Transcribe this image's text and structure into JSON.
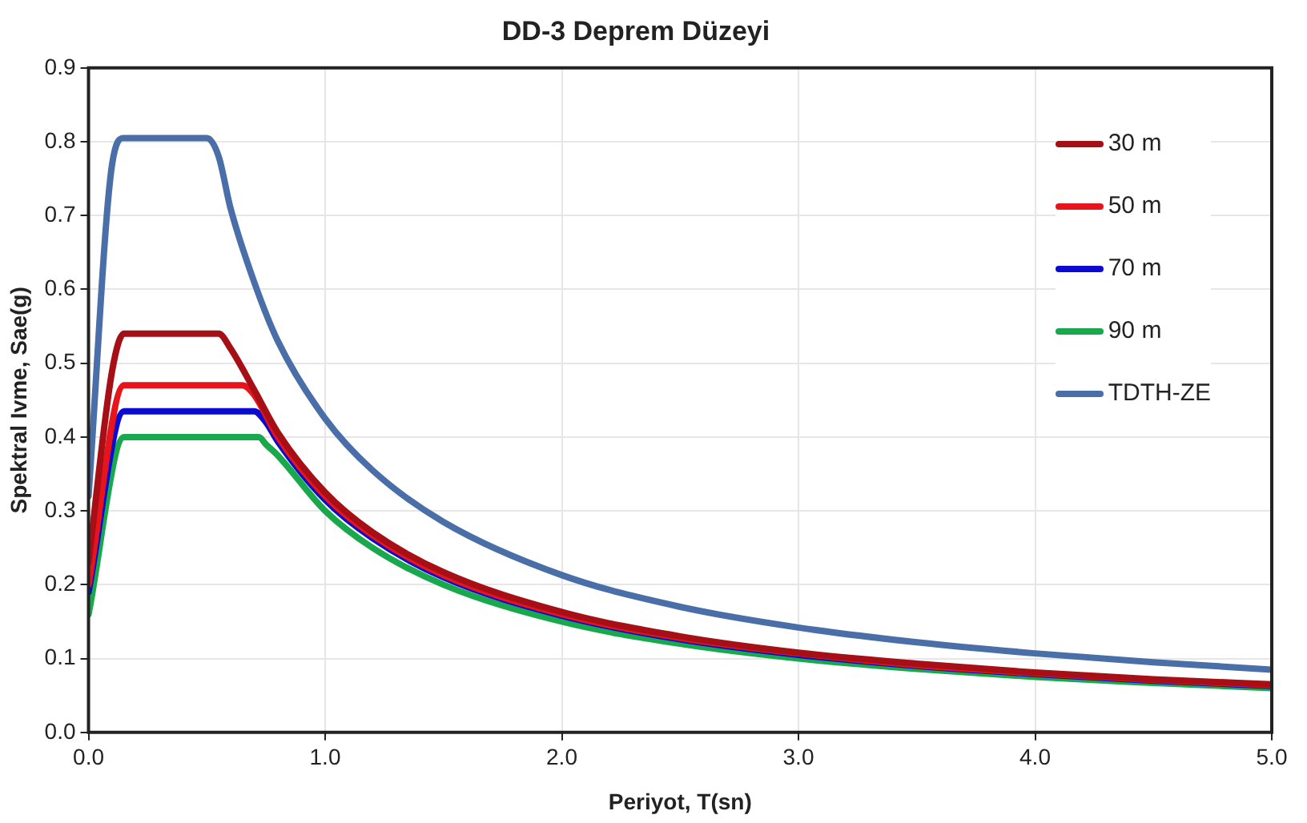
{
  "chart_data": {
    "type": "line",
    "title": "DD-3 Deprem Düzeyi",
    "xlabel": "Periyot, T(sn)",
    "ylabel": "Spektral Ivme, Sae(g)",
    "xlim": [
      0,
      5
    ],
    "xticks": [
      {
        "value": 0,
        "label": "0.0"
      },
      {
        "value": 1,
        "label": "1.0"
      },
      {
        "value": 2,
        "label": "2.0"
      },
      {
        "value": 3,
        "label": "3.0"
      },
      {
        "value": 4,
        "label": "4.0"
      },
      {
        "value": 5,
        "label": "5.0"
      }
    ],
    "ylim": [
      0,
      0.9
    ],
    "yticks": [
      {
        "value": 0,
        "label": "0.0"
      },
      0.1,
      0.2,
      0.3,
      0.4,
      0.5,
      0.6,
      0.7,
      0.8,
      0.9
    ],
    "grid": true,
    "legend": "top right",
    "marker": "none",
    "line_style": "solid",
    "series": [
      {
        "name": "30 m",
        "color": "#a50f15",
        "x": [
          0,
          0.1,
          0.15,
          0.55,
          0.6,
          0.7,
          0.8,
          1.0,
          1.2,
          1.5,
          2,
          2.5,
          3,
          3.5,
          4,
          4.5,
          5
        ],
        "values": [
          0.23,
          0.49,
          0.54,
          0.54,
          0.52,
          0.464,
          0.406,
          0.325,
          0.271,
          0.217,
          0.163,
          0.13,
          0.108,
          0.093,
          0.081,
          0.072,
          0.065
        ]
      },
      {
        "name": "50 m",
        "color": "#e8141c",
        "x": [
          0,
          0.15,
          0.65,
          0.7,
          0.8,
          1.0,
          1.2,
          1.5,
          2,
          2.5,
          3,
          3.5,
          4,
          4.5,
          5
        ],
        "values": [
          0.2,
          0.47,
          0.47,
          0.457,
          0.4,
          0.32,
          0.267,
          0.213,
          0.16,
          0.128,
          0.107,
          0.091,
          0.08,
          0.071,
          0.064
        ]
      },
      {
        "name": "70 m",
        "color": "#0a0ad0",
        "x": [
          0,
          0.15,
          0.7,
          0.75,
          0.8,
          1.0,
          1.2,
          1.5,
          2,
          2.5,
          3,
          3.5,
          4,
          4.5,
          5
        ],
        "values": [
          0.19,
          0.435,
          0.435,
          0.42,
          0.394,
          0.315,
          0.263,
          0.21,
          0.158,
          0.126,
          0.105,
          0.09,
          0.079,
          0.07,
          0.063
        ]
      },
      {
        "name": "90 m",
        "color": "#1aa84c",
        "x": [
          0,
          0.15,
          0.72,
          0.75,
          0.8,
          1.0,
          1.2,
          1.5,
          2,
          2.5,
          3,
          3.5,
          4,
          4.5,
          5
        ],
        "values": [
          0.16,
          0.4,
          0.4,
          0.39,
          0.375,
          0.3,
          0.25,
          0.2,
          0.15,
          0.12,
          0.1,
          0.086,
          0.075,
          0.067,
          0.06
        ]
      },
      {
        "name": "TDTH-ZE",
        "color": "#4a6ea8",
        "x": [
          0,
          0.1,
          0.15,
          0.5,
          0.55,
          0.6,
          0.7,
          0.8,
          1.0,
          1.2,
          1.5,
          2,
          2.5,
          3,
          3.5,
          4,
          4.5,
          5
        ],
        "values": [
          0.32,
          0.77,
          0.805,
          0.805,
          0.78,
          0.71,
          0.61,
          0.53,
          0.425,
          0.355,
          0.285,
          0.213,
          0.17,
          0.142,
          0.122,
          0.107,
          0.095,
          0.085
        ]
      }
    ]
  }
}
